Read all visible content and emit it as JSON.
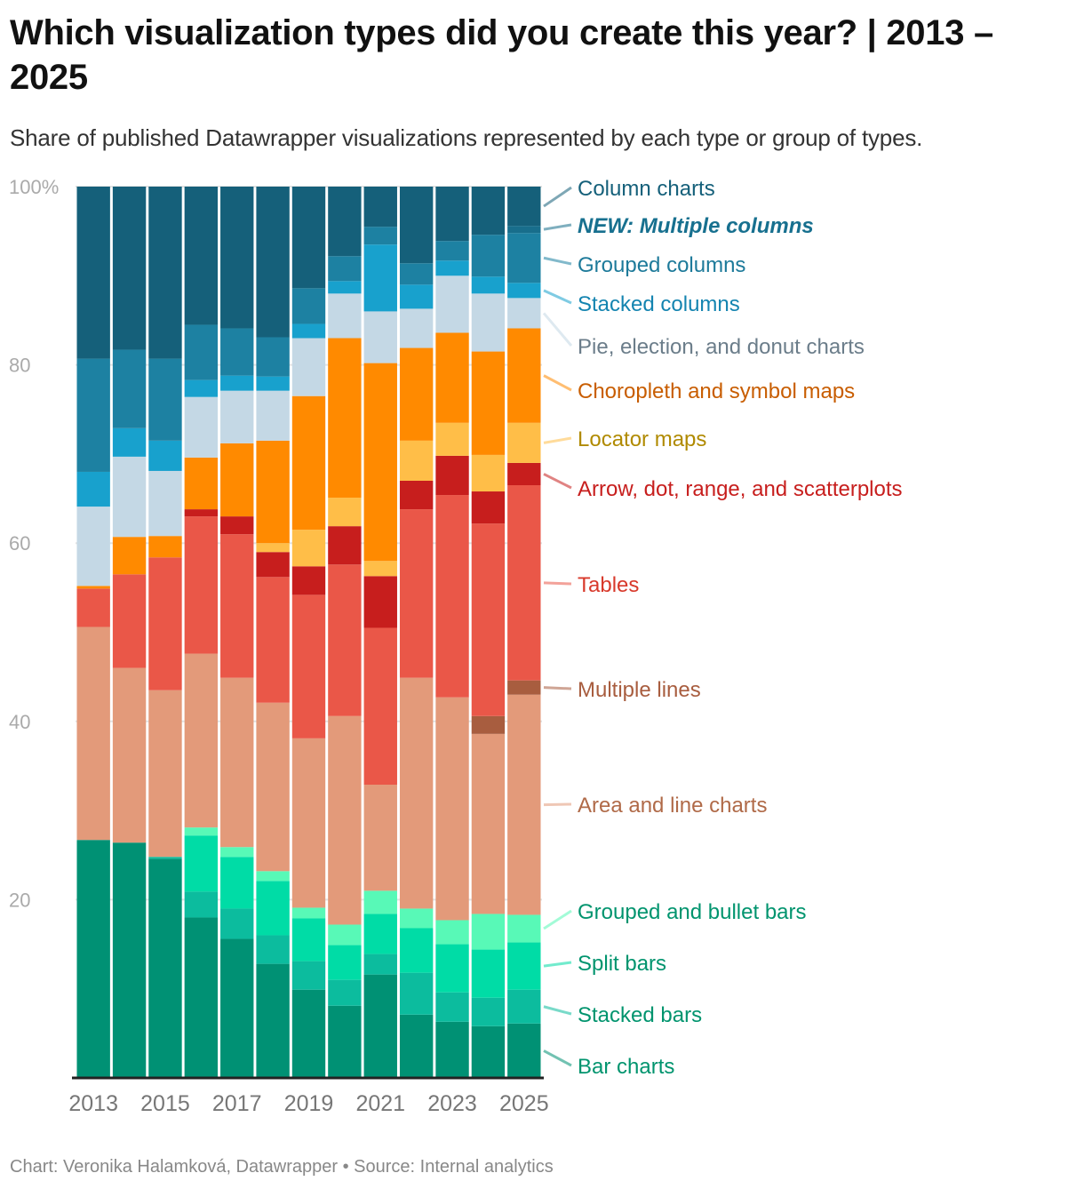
{
  "title": "Which visualization types did you create this year? | 2013 – 2025",
  "subtitle": "Share of published Datawrapper visualizations represented by each type or group of types.",
  "footer": "Chart: Veronika Halamková, Datawrapper • Source: Internal analytics",
  "chart_data": {
    "type": "bar",
    "stacked": true,
    "normalized": true,
    "categories": [
      "2013",
      "2014",
      "2015",
      "2016",
      "2017",
      "2018",
      "2019",
      "2020",
      "2021",
      "2022",
      "2023",
      "2024",
      "2025"
    ],
    "x_tick_labels": [
      "2013",
      "2015",
      "2017",
      "2019",
      "2021",
      "2023",
      "2025"
    ],
    "y_tick_labels": [
      "100%",
      "80",
      "60",
      "40",
      "20"
    ],
    "y_ticks": [
      100,
      80,
      60,
      40,
      20
    ],
    "ylim": [
      0,
      100
    ],
    "grid": true,
    "legend": "right, direct labels",
    "series": [
      {
        "name": "Bar charts",
        "color": "#009174",
        "label_color": "#00946e",
        "values": [
          26.7,
          26.4,
          24.6,
          18.0,
          15.6,
          12.8,
          9.9,
          8.1,
          11.6,
          7.1,
          6.3,
          5.8,
          6.1
        ]
      },
      {
        "name": "Stacked bars",
        "color": "#0cbc9e",
        "label_color": "#00946e",
        "values": [
          0,
          0,
          0.2,
          2.9,
          3.4,
          3.2,
          3.2,
          2.9,
          2.3,
          4.7,
          3.3,
          3.2,
          3.8
        ]
      },
      {
        "name": "Split bars",
        "color": "#00dca6",
        "label_color": "#00946e",
        "values": [
          0,
          0,
          0,
          6.3,
          5.8,
          6.1,
          4.8,
          3.9,
          4.5,
          5.0,
          5.4,
          5.4,
          5.3
        ]
      },
      {
        "name": "Grouped and bullet bars",
        "color": "#58f9b7",
        "label_color": "#00946e",
        "values": [
          0,
          0,
          0,
          0.9,
          1.1,
          1.1,
          1.2,
          2.3,
          2.6,
          2.2,
          2.7,
          4.0,
          3.1
        ]
      },
      {
        "name": "Area and line charts",
        "color": "#e39a7a",
        "label_color": "#b06a48",
        "values": [
          23.9,
          19.6,
          18.7,
          19.5,
          19.0,
          18.9,
          19.0,
          23.4,
          11.9,
          25.9,
          25.0,
          20.2,
          24.7
        ]
      },
      {
        "name": "Multiple lines",
        "color": "#a85d3f",
        "label_color": "#a85d3f",
        "values": [
          0,
          0,
          0,
          0,
          0,
          0,
          0,
          0,
          0,
          0,
          0,
          2.0,
          1.6
        ]
      },
      {
        "name": "Tables",
        "color": "#ea5748",
        "label_color": "#d8392b",
        "values": [
          4.3,
          10.5,
          14.9,
          15.4,
          16.1,
          14.1,
          16.1,
          17.0,
          17.6,
          18.9,
          22.7,
          21.6,
          21.9
        ]
      },
      {
        "name": "Arrow, dot, range, and scatterplots",
        "color": "#c71e1d",
        "label_color": "#c71e1d",
        "values": [
          0,
          0,
          0,
          0.8,
          2.0,
          2.8,
          3.2,
          4.3,
          5.8,
          3.2,
          4.4,
          3.6,
          2.5
        ]
      },
      {
        "name": "Locator maps",
        "color": "#ffbe48",
        "label_color": "#b08a00",
        "values": [
          0,
          0,
          0,
          0,
          0,
          1.0,
          4.1,
          3.2,
          1.7,
          4.5,
          3.7,
          4.1,
          4.5
        ]
      },
      {
        "name": "Choropleth and symbol maps",
        "color": "#ff8a00",
        "label_color": "#c85d00",
        "values": [
          0.3,
          4.2,
          2.4,
          5.8,
          8.2,
          11.5,
          15.0,
          17.9,
          22.2,
          10.4,
          10.1,
          11.6,
          10.6
        ]
      },
      {
        "name": "Pie, election, and donut charts",
        "color": "#c4d8e5",
        "label_color": "#6b7d8a",
        "values": [
          8.9,
          9.0,
          7.3,
          6.8,
          5.9,
          5.6,
          6.5,
          5.0,
          5.8,
          4.4,
          6.4,
          6.5,
          3.4
        ]
      },
      {
        "name": "Stacked columns",
        "color": "#18a1cd",
        "label_color": "#1484b0",
        "values": [
          3.9,
          3.2,
          3.4,
          1.9,
          1.7,
          1.6,
          1.6,
          1.4,
          7.5,
          2.7,
          1.7,
          1.9,
          1.7
        ]
      },
      {
        "name": "Grouped columns",
        "color": "#1d81a2",
        "label_color": "#1d7a9a",
        "values": [
          12.7,
          8.8,
          9.2,
          6.2,
          5.3,
          4.4,
          4.0,
          2.8,
          2.0,
          2.4,
          2.2,
          4.7,
          5.6
        ]
      },
      {
        "name": "NEW: Multiple columns",
        "color": "#186e8c",
        "label_color": "#17708f",
        "bold_italic": true,
        "values": [
          0,
          0,
          0,
          0,
          0,
          0,
          0,
          0,
          0,
          0,
          0,
          0,
          0.8
        ]
      },
      {
        "name": "Column charts",
        "color": "#15607a",
        "label_color": "#15607a",
        "values": [
          19.3,
          18.3,
          19.3,
          15.5,
          15.9,
          16.9,
          11.4,
          7.8,
          4.5,
          8.6,
          6.1,
          5.4,
          4.4
        ]
      }
    ]
  }
}
